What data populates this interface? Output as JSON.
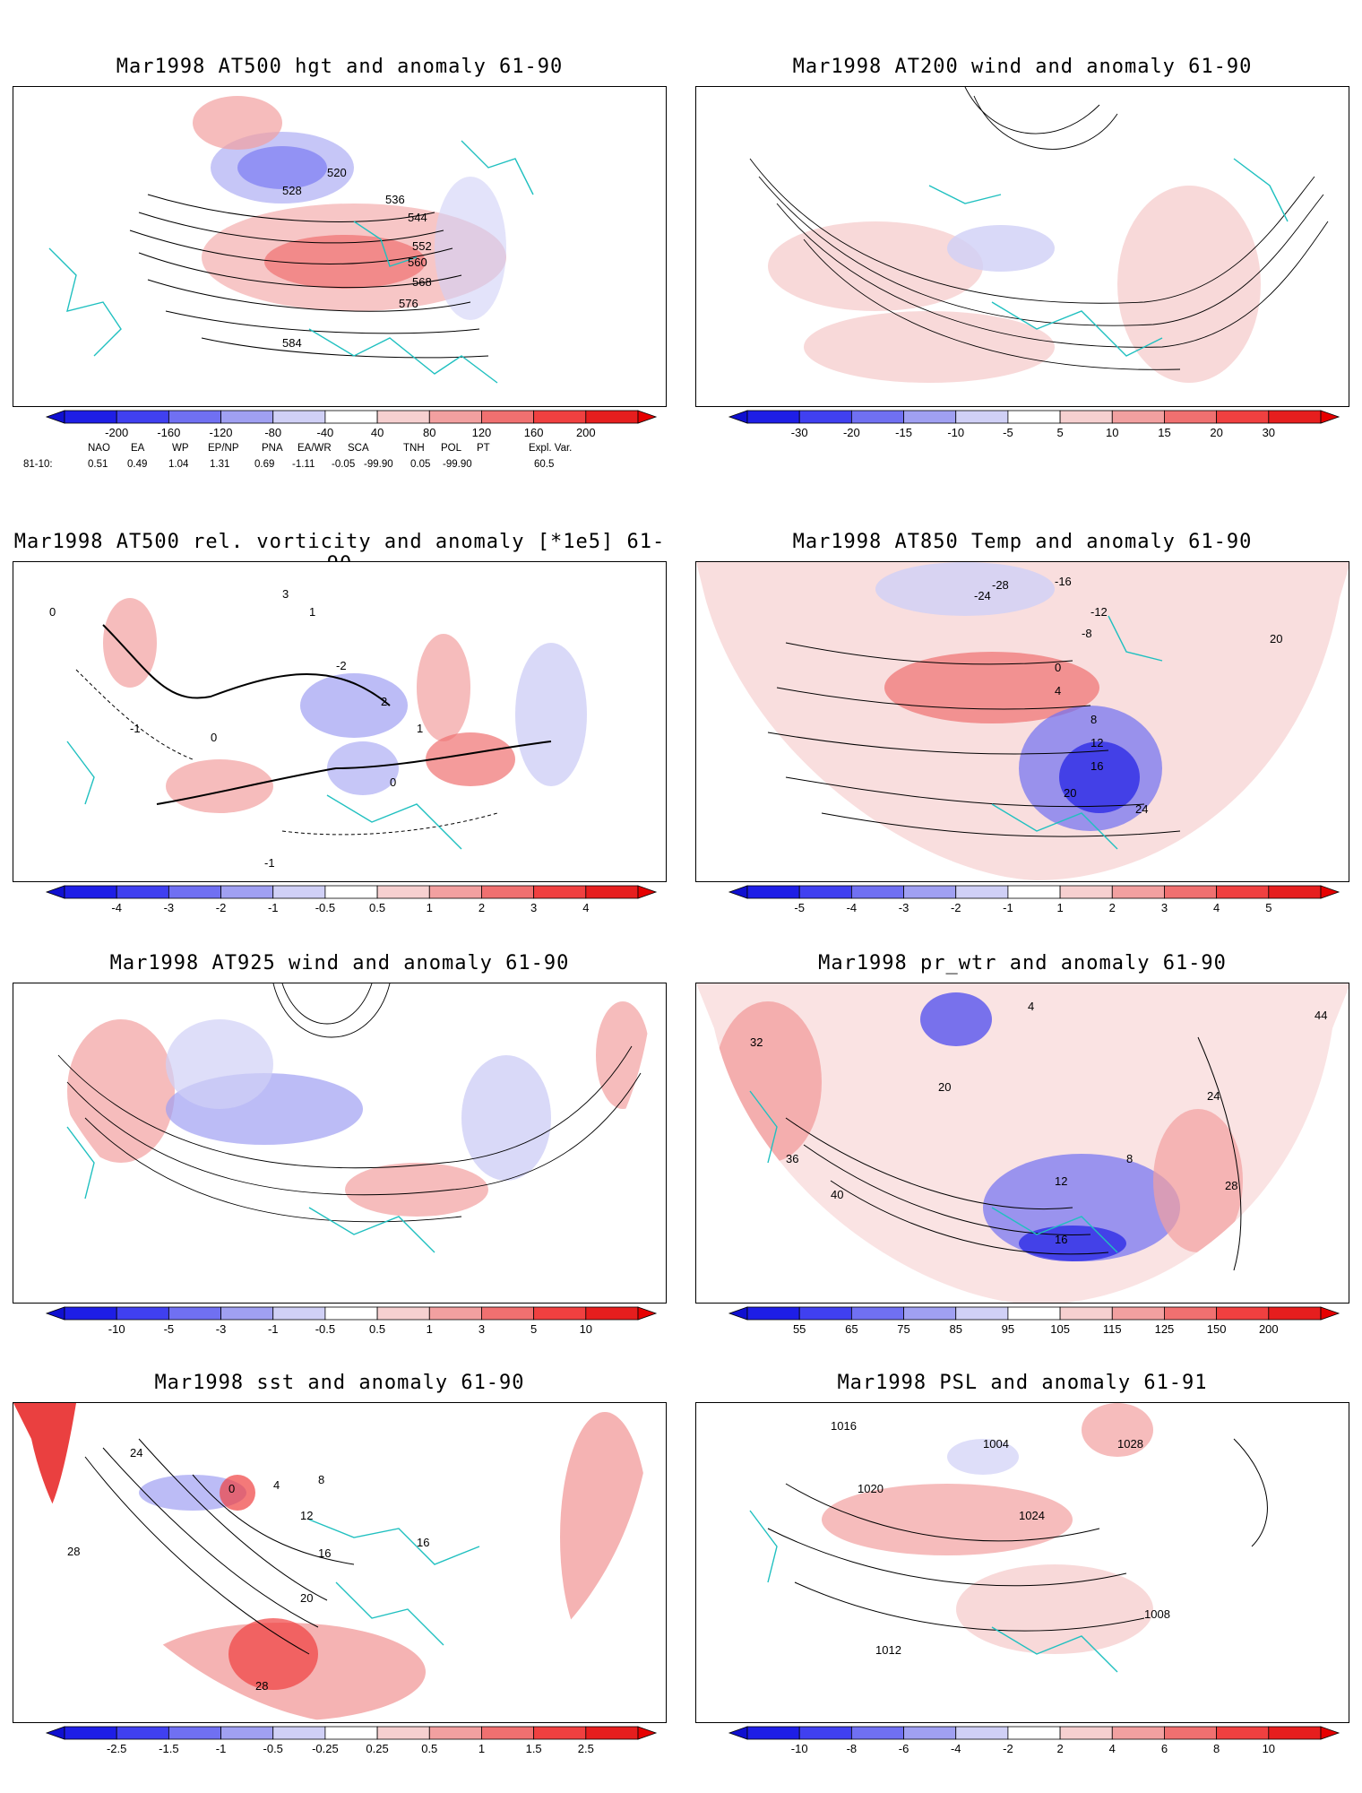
{
  "panels": [
    {
      "title": "Mar1998 AT500 hgt and anomaly 61-90",
      "colorbar": {
        "labels": [
          "-200",
          "-160",
          "-120",
          "-80",
          "-40",
          "40",
          "80",
          "120",
          "160",
          "200"
        ]
      },
      "contour_labels": [
        "520",
        "528",
        "536",
        "544",
        "552",
        "560",
        "568",
        "576",
        "584"
      ]
    },
    {
      "title": "Mar1998 AT200 wind and anomaly 61-90",
      "colorbar": {
        "labels": [
          "-30",
          "-20",
          "-15",
          "-10",
          "-5",
          "5",
          "10",
          "15",
          "20",
          "30"
        ]
      },
      "contour_labels": []
    },
    {
      "title": "Mar1998 AT500 rel. vorticity and anomaly [*1e5] 61-90",
      "colorbar": {
        "labels": [
          "-4",
          "-3",
          "-2",
          "-1",
          "-0.5",
          "0.5",
          "1",
          "2",
          "3",
          "4"
        ]
      },
      "contour_labels": [
        "0",
        "-1",
        "-2",
        "1",
        "2",
        "3",
        "0",
        "-1",
        "0",
        "1"
      ]
    },
    {
      "title": "Mar1998 AT850 Temp and anomaly 61-90",
      "colorbar": {
        "labels": [
          "-5",
          "-4",
          "-3",
          "-2",
          "-1",
          "1",
          "2",
          "3",
          "4",
          "5"
        ]
      },
      "contour_labels": [
        "-28",
        "-24",
        "-16",
        "-12",
        "-8",
        "0",
        "4",
        "8",
        "12",
        "16",
        "20",
        "24",
        "20"
      ]
    },
    {
      "title": "Mar1998 AT925 wind and anomaly 61-90",
      "colorbar": {
        "labels": [
          "-10",
          "-5",
          "-3",
          "-1",
          "-0.5",
          "0.5",
          "1",
          "3",
          "5",
          "10"
        ]
      },
      "contour_labels": []
    },
    {
      "title": "Mar1998 pr_wtr and anomaly 61-90",
      "colorbar": {
        "labels": [
          "55",
          "65",
          "75",
          "85",
          "95",
          "105",
          "115",
          "125",
          "150",
          "200"
        ]
      },
      "contour_labels": [
        "44",
        "40",
        "36",
        "32",
        "28",
        "24",
        "20",
        "16",
        "12",
        "8",
        "4"
      ]
    },
    {
      "title": "Mar1998 sst and anomaly 61-90",
      "colorbar": {
        "labels": [
          "-2.5",
          "-1.5",
          "-1",
          "-0.5",
          "-0.25",
          "0.25",
          "0.5",
          "1",
          "1.5",
          "2.5"
        ]
      },
      "contour_labels": [
        "24",
        "28",
        "0",
        "4",
        "8",
        "12",
        "16",
        "20",
        "28",
        "16"
      ]
    },
    {
      "title": "Mar1998 PSL and anomaly 61-91",
      "colorbar": {
        "labels": [
          "-10",
          "-8",
          "-6",
          "-4",
          "-2",
          "2",
          "4",
          "6",
          "8",
          "10"
        ]
      },
      "contour_labels": [
        "1016",
        "1020",
        "1024",
        "1028",
        "1008",
        "1004",
        "1012"
      ]
    }
  ],
  "teleconnections": {
    "headers": [
      "NAO",
      "EA",
      "WP",
      "EP/NP",
      "PNA",
      "EA/WR",
      "SCA",
      "TNH",
      "POL",
      "PT",
      "Expl. Var."
    ],
    "row_label": "81-10:",
    "values": [
      "0.51",
      "0.49",
      "1.04",
      "1.31",
      "0.69",
      "-1.11",
      "-0.05",
      "-99.90",
      "0.05",
      "-99.90",
      "60.5"
    ]
  },
  "colors": {
    "neg": [
      "#1e1ee6",
      "#4040f0",
      "#7070f2",
      "#a0a0f2",
      "#d0d0f6"
    ],
    "pos": [
      "#f6d0d0",
      "#f2a0a0",
      "#f07070",
      "#f04040",
      "#e61e1e"
    ],
    "coast": "#20c0c0"
  }
}
